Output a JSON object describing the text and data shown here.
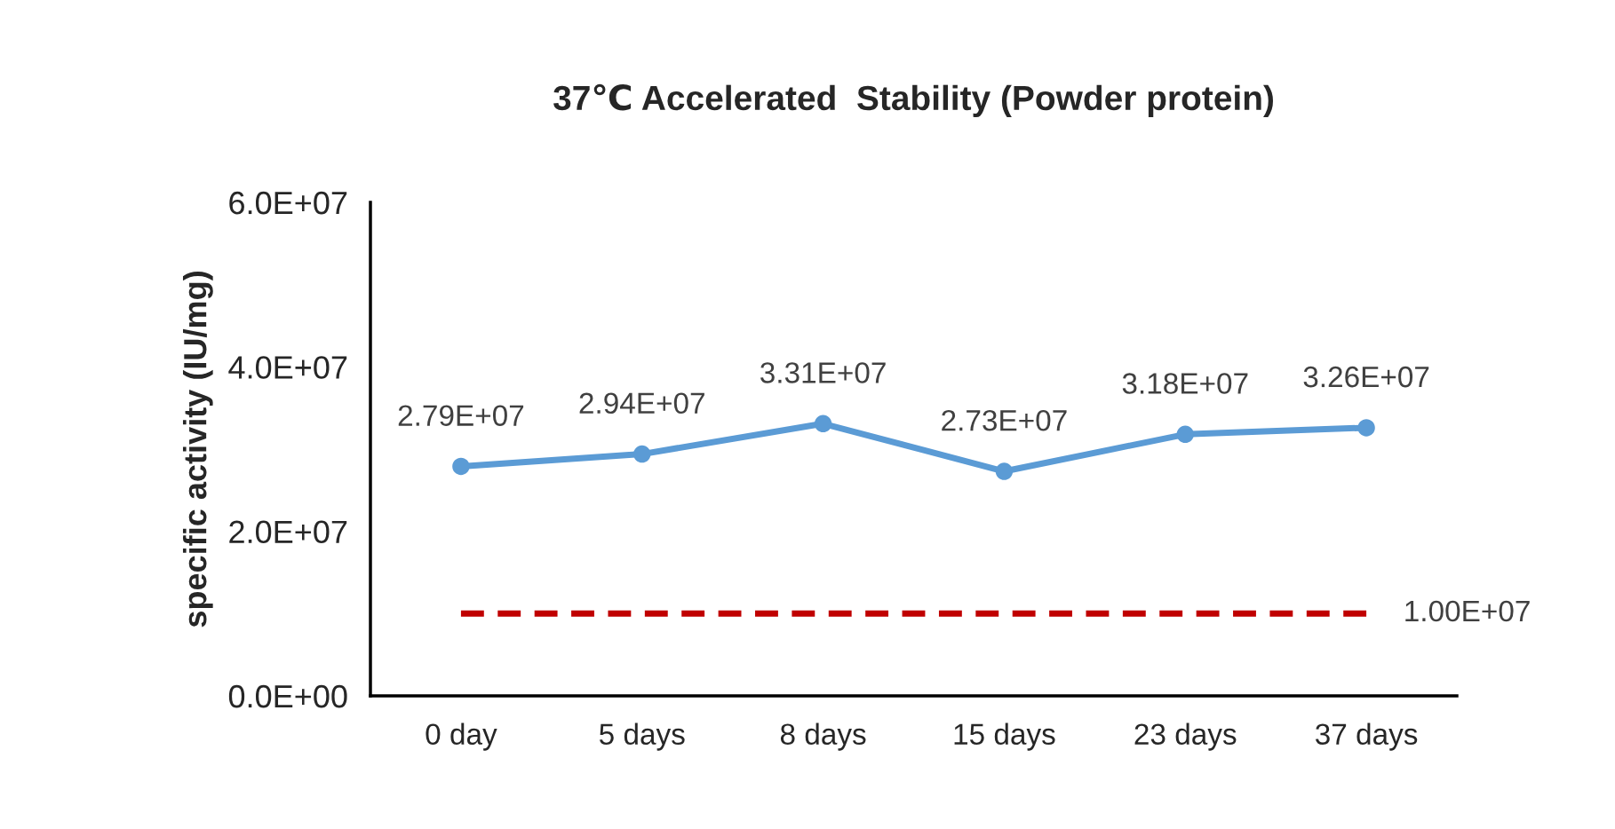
{
  "chart_data": {
    "type": "line",
    "title": "37℃ Accelerated  Stability (Powder protein)",
    "ylabel": "specific activity (IU/mg)",
    "categories": [
      "0 day",
      "5 days",
      "8 days",
      "15 days",
      "23 days",
      "37 days"
    ],
    "series": [
      {
        "color": "#5b9bd5",
        "values": [
          27900000,
          29400000,
          33100000,
          27300000,
          31800000,
          32600000
        ],
        "value_labels": [
          "2.79E+07",
          "2.94E+07",
          "3.31E+07",
          "2.73E+07",
          "3.18E+07",
          "3.26E+07"
        ],
        "marker": "circle",
        "line_style": "solid"
      },
      {
        "color": "#c00000",
        "values": [
          10000000,
          10000000,
          10000000,
          10000000,
          10000000,
          10000000
        ],
        "value_labels": [
          null,
          null,
          null,
          null,
          null,
          "1.00E+07"
        ],
        "marker": "none",
        "line_style": "dashed"
      }
    ],
    "ylim": [
      0,
      60000000
    ],
    "yticks": [
      {
        "value": 0,
        "label": "0.0E+00"
      },
      {
        "value": 20000000,
        "label": "2.0E+07"
      },
      {
        "value": 40000000,
        "label": "4.0E+07"
      },
      {
        "value": 60000000,
        "label": "6.0E+07"
      }
    ],
    "grid": false
  }
}
